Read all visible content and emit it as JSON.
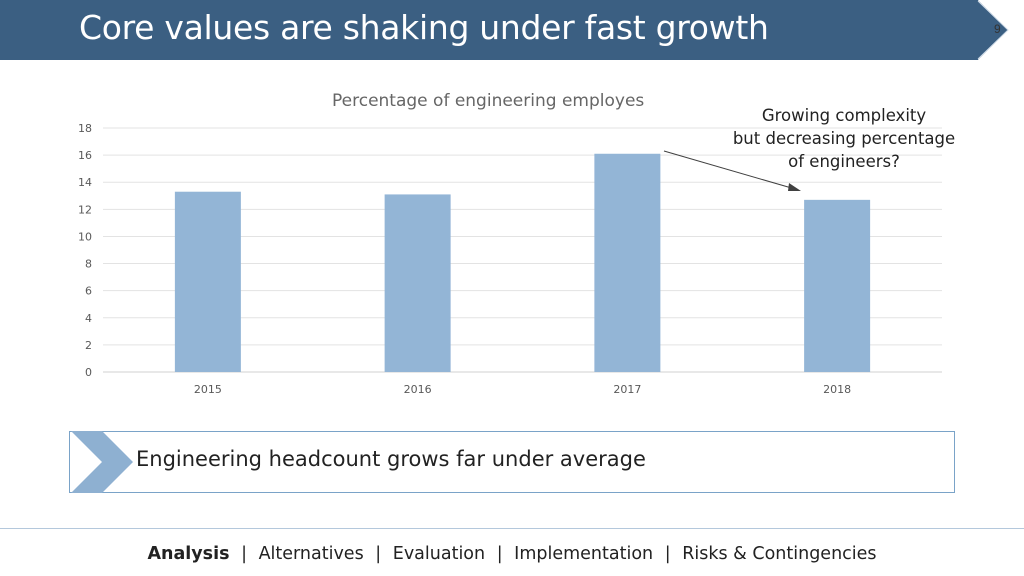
{
  "slide": {
    "title": "Core values are shaking under fast growth",
    "page_number": "9"
  },
  "annotation": {
    "lines": [
      "Growing complexity",
      "but decreasing percentage",
      "of engineers?"
    ]
  },
  "callout": {
    "text": "Engineering headcount grows far under average"
  },
  "footer": {
    "items": [
      {
        "label": "Analysis",
        "active": true
      },
      {
        "label": "Alternatives",
        "active": false
      },
      {
        "label": "Evaluation",
        "active": false
      },
      {
        "label": "Implementation",
        "active": false
      },
      {
        "label": "Risks & Contingencies",
        "active": false
      }
    ],
    "separator": "|"
  },
  "colors": {
    "header": "#3b5f82",
    "bar": "#93b5d6",
    "gridline": "#e3e3e3",
    "chevron": "#8eb0d1"
  },
  "chart_data": {
    "type": "bar",
    "title": "Percentage of engineering employes",
    "categories": [
      "2015",
      "2016",
      "2017",
      "2018"
    ],
    "values": [
      13.3,
      13.1,
      16.1,
      12.7
    ],
    "ylim": [
      0,
      18
    ],
    "yticks": [
      0,
      2,
      4,
      6,
      8,
      10,
      12,
      14,
      16,
      18
    ],
    "xlabel": "",
    "ylabel": "",
    "grid": true,
    "legend": "none"
  }
}
